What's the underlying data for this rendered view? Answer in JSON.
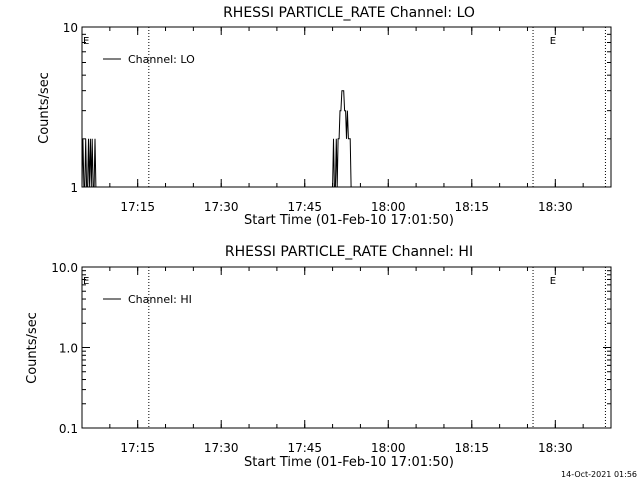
{
  "chart_data": [
    {
      "type": "line",
      "title": "RHESSI PARTICLE_RATE Channel: LO",
      "xlabel": "Start Time (01-Feb-10 17:01:50)",
      "ylabel": "Counts/sec",
      "yscale": "log",
      "ylim": [
        1,
        10
      ],
      "y_ticks": [
        "1",
        "10"
      ],
      "xlim": [
        "17:05",
        "18:40"
      ],
      "x_ticks": [
        "17:15",
        "17:30",
        "17:45",
        "18:00",
        "18:15",
        "18:30"
      ],
      "legend": {
        "label": "Channel: LO",
        "position": "top-left"
      },
      "e_markers": [
        "17:04",
        "18:29"
      ],
      "vlines": [
        "17:17",
        "18:26",
        "18:39"
      ],
      "series": [
        {
          "name": "Channel: LO",
          "x": [
            "17:05:00",
            "17:05:10",
            "17:05:20",
            "17:05:30",
            "17:05:40",
            "17:05:50",
            "17:06:00",
            "17:06:10",
            "17:06:20",
            "17:06:30",
            "17:06:40",
            "17:06:50",
            "17:07:00",
            "17:07:10",
            "17:07:20",
            "17:07:30",
            "17:07:40",
            "17:07:50",
            "17:08:00",
            "17:08:10",
            "17:08:20",
            "17:08:30",
            "17:50:00",
            "17:50:10",
            "17:50:20",
            "17:50:30",
            "17:50:40",
            "17:50:50",
            "17:51:00",
            "17:51:10",
            "17:51:20",
            "17:51:30",
            "17:51:40",
            "17:51:50",
            "17:52:00",
            "17:52:10",
            "17:52:20",
            "17:52:30",
            "17:52:40",
            "17:52:50",
            "17:53:00",
            "17:53:10",
            "17:53:20",
            "17:53:30",
            "17:53:40",
            "17:53:50",
            "17:54:00",
            "17:54:10",
            "17:54:20",
            "17:54:30",
            "17:54:40",
            "17:54:50",
            "17:55:00",
            "17:55:10",
            "17:55:20",
            "17:55:30",
            "17:55:40"
          ],
          "values": [
            1,
            2,
            1,
            1,
            2,
            1,
            1,
            2,
            1,
            2,
            1,
            2,
            1,
            1,
            2,
            1,
            1,
            1,
            1,
            1,
            1,
            1,
            1,
            2,
            1,
            1,
            2,
            1,
            2,
            2,
            3,
            3,
            4,
            4,
            4,
            3,
            3,
            2,
            3,
            2,
            2,
            2,
            1,
            1,
            1,
            1,
            1,
            1,
            1,
            1,
            1,
            1,
            1,
            1,
            1,
            1,
            1
          ]
        }
      ]
    },
    {
      "type": "line",
      "title": "RHESSI PARTICLE_RATE Channel: HI",
      "xlabel": "Start Time (01-Feb-10 17:01:50)",
      "ylabel": "Counts/sec",
      "yscale": "log",
      "ylim": [
        0.1,
        10
      ],
      "y_ticks": [
        "0.1",
        "1.0",
        "10.0"
      ],
      "xlim": [
        "17:05",
        "18:40"
      ],
      "x_ticks": [
        "17:15",
        "17:30",
        "17:45",
        "18:00",
        "18:15",
        "18:30"
      ],
      "legend": {
        "label": "Channel: HI",
        "position": "top-left"
      },
      "e_markers": [
        "17:04",
        "18:29"
      ],
      "vlines": [
        "17:17",
        "18:26",
        "18:39"
      ],
      "series": [
        {
          "name": "Channel: HI",
          "x": [],
          "values": []
        }
      ]
    }
  ],
  "marker_label": "E",
  "footer": {
    "timestamp": "14-Oct-2021 01:56"
  }
}
